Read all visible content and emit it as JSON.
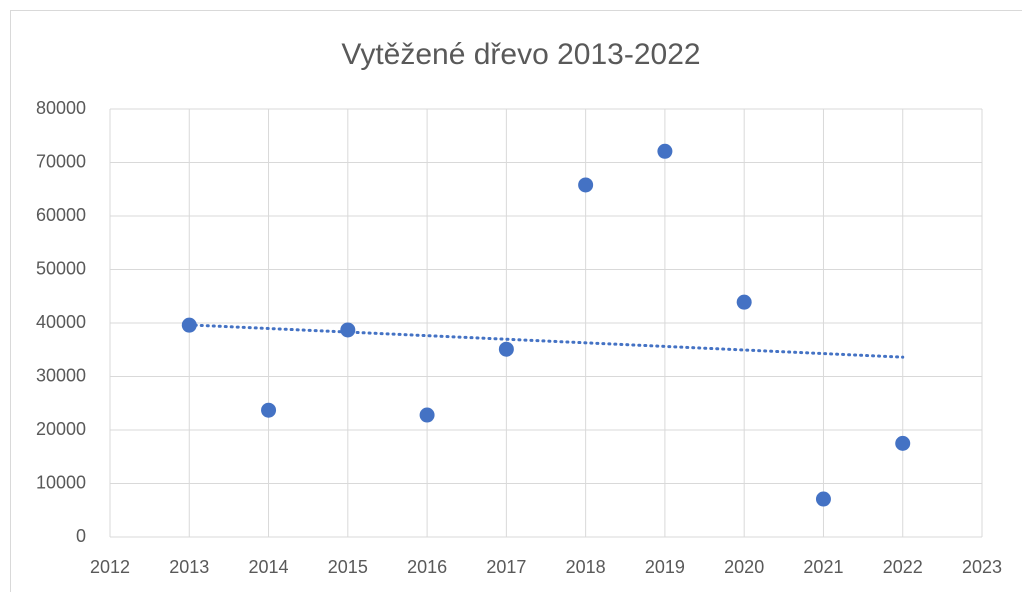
{
  "chart_data": {
    "type": "scatter",
    "title": "Vytěžené dřevo 2013-2022",
    "x": [
      2013,
      2014,
      2015,
      2016,
      2017,
      2018,
      2019,
      2020,
      2021,
      2022
    ],
    "values": [
      39600,
      23700,
      38700,
      22800,
      35100,
      65800,
      72100,
      43900,
      7100,
      17500
    ],
    "color": "#4472c4",
    "xlim": [
      2012,
      2023
    ],
    "xticks": [
      2012,
      2013,
      2014,
      2015,
      2016,
      2017,
      2018,
      2019,
      2020,
      2021,
      2022,
      2023
    ],
    "ylim": [
      0,
      80000
    ],
    "yticks": [
      0,
      10000,
      20000,
      30000,
      40000,
      50000,
      60000,
      70000,
      80000
    ],
    "grid": true,
    "trendline": "linear"
  }
}
